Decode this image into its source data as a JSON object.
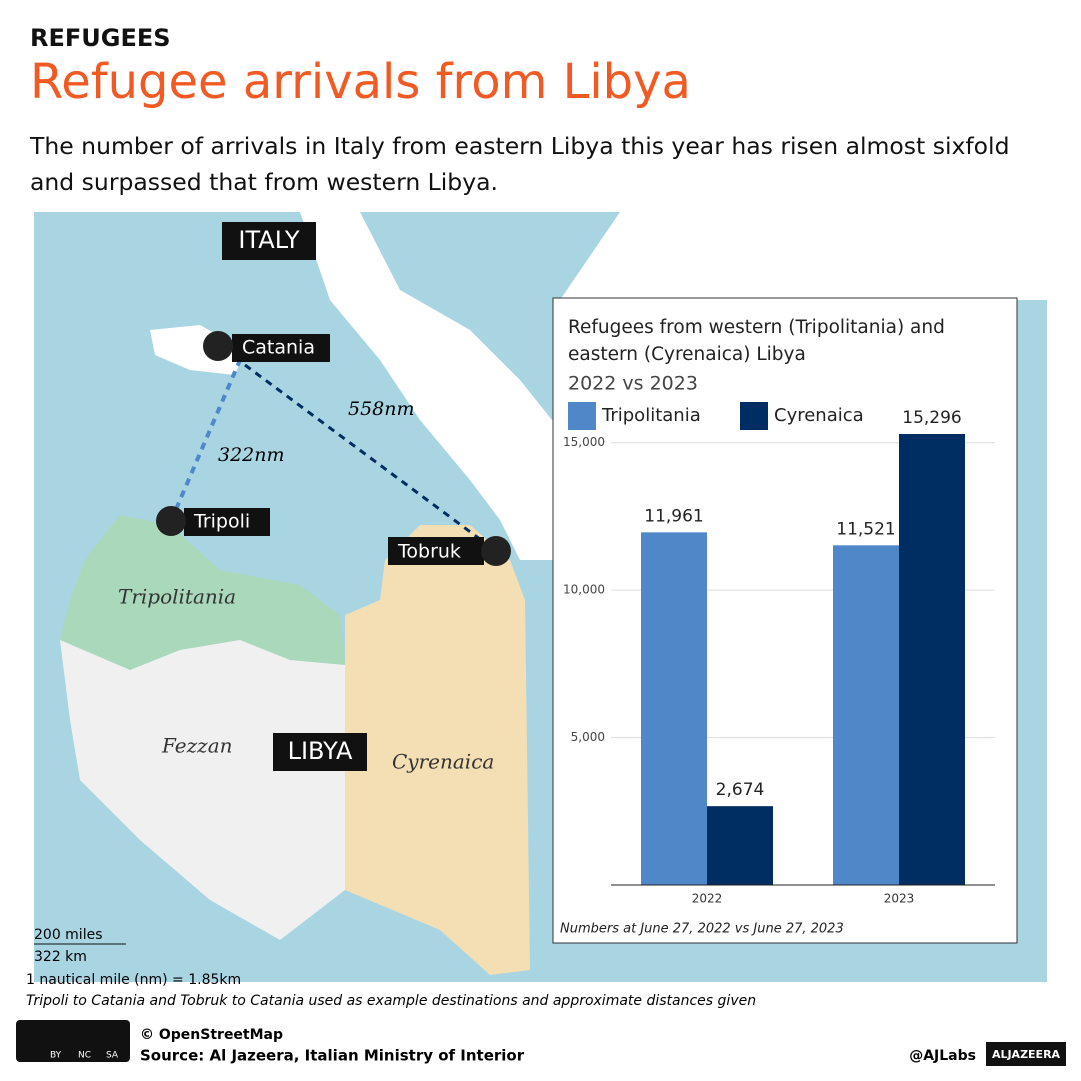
{
  "header": {
    "kicker": "REFUGEES",
    "title": "Refugee arrivals from Libya",
    "subtitle": "The number of arrivals in Italy from eastern Libya this year has risen almost sixfold and surpassed that from western Libya."
  },
  "map": {
    "country_labels": [
      "ITALY",
      "LIBYA"
    ],
    "cities": [
      "Catania",
      "Tripoli",
      "Tobruk"
    ],
    "distances": [
      "558nm",
      "322nm"
    ],
    "regions": [
      "Tripolitania",
      "Fezzan",
      "Cyrenaica"
    ],
    "scale": [
      "200 miles",
      "322 km"
    ],
    "conversion": "1 nautical mile (nm) = 1.85km",
    "note": "Tripoli to Catania and Tobruk to Catania used as example destinations and approximate distances given"
  },
  "chart_data": {
    "type": "bar",
    "title": "Refugees from western (Tripolitania) and eastern (Cyrenaica) Libya",
    "subtitle": "2022 vs 2023",
    "categories": [
      "2022",
      "2023"
    ],
    "series": [
      {
        "name": "Tripolitania",
        "color": "#4f87c9",
        "values": [
          11961,
          11521
        ],
        "value_labels": [
          "11,961",
          "11,521"
        ]
      },
      {
        "name": "Cyrenaica",
        "color": "#002d62",
        "values": [
          2674,
          15296
        ],
        "value_labels": [
          "2,674",
          "15,296"
        ]
      }
    ],
    "ylim": [
      0,
      15500
    ],
    "yticks": [
      {
        "value": 5000,
        "label": "5,000"
      },
      {
        "value": 10000,
        "label": "10,000"
      },
      {
        "value": 15000,
        "label": "15,000"
      }
    ],
    "grid": true,
    "note": "Numbers at June 27, 2022 vs June 27, 2023"
  },
  "footer": {
    "license": [
      "BY",
      "NC",
      "SA"
    ],
    "credit": "© OpenStreetMap",
    "source": "Source: Al Jazeera, Italian Ministry of Interior",
    "handle": "@AJLabs",
    "brand": "ALJAZEERA"
  }
}
